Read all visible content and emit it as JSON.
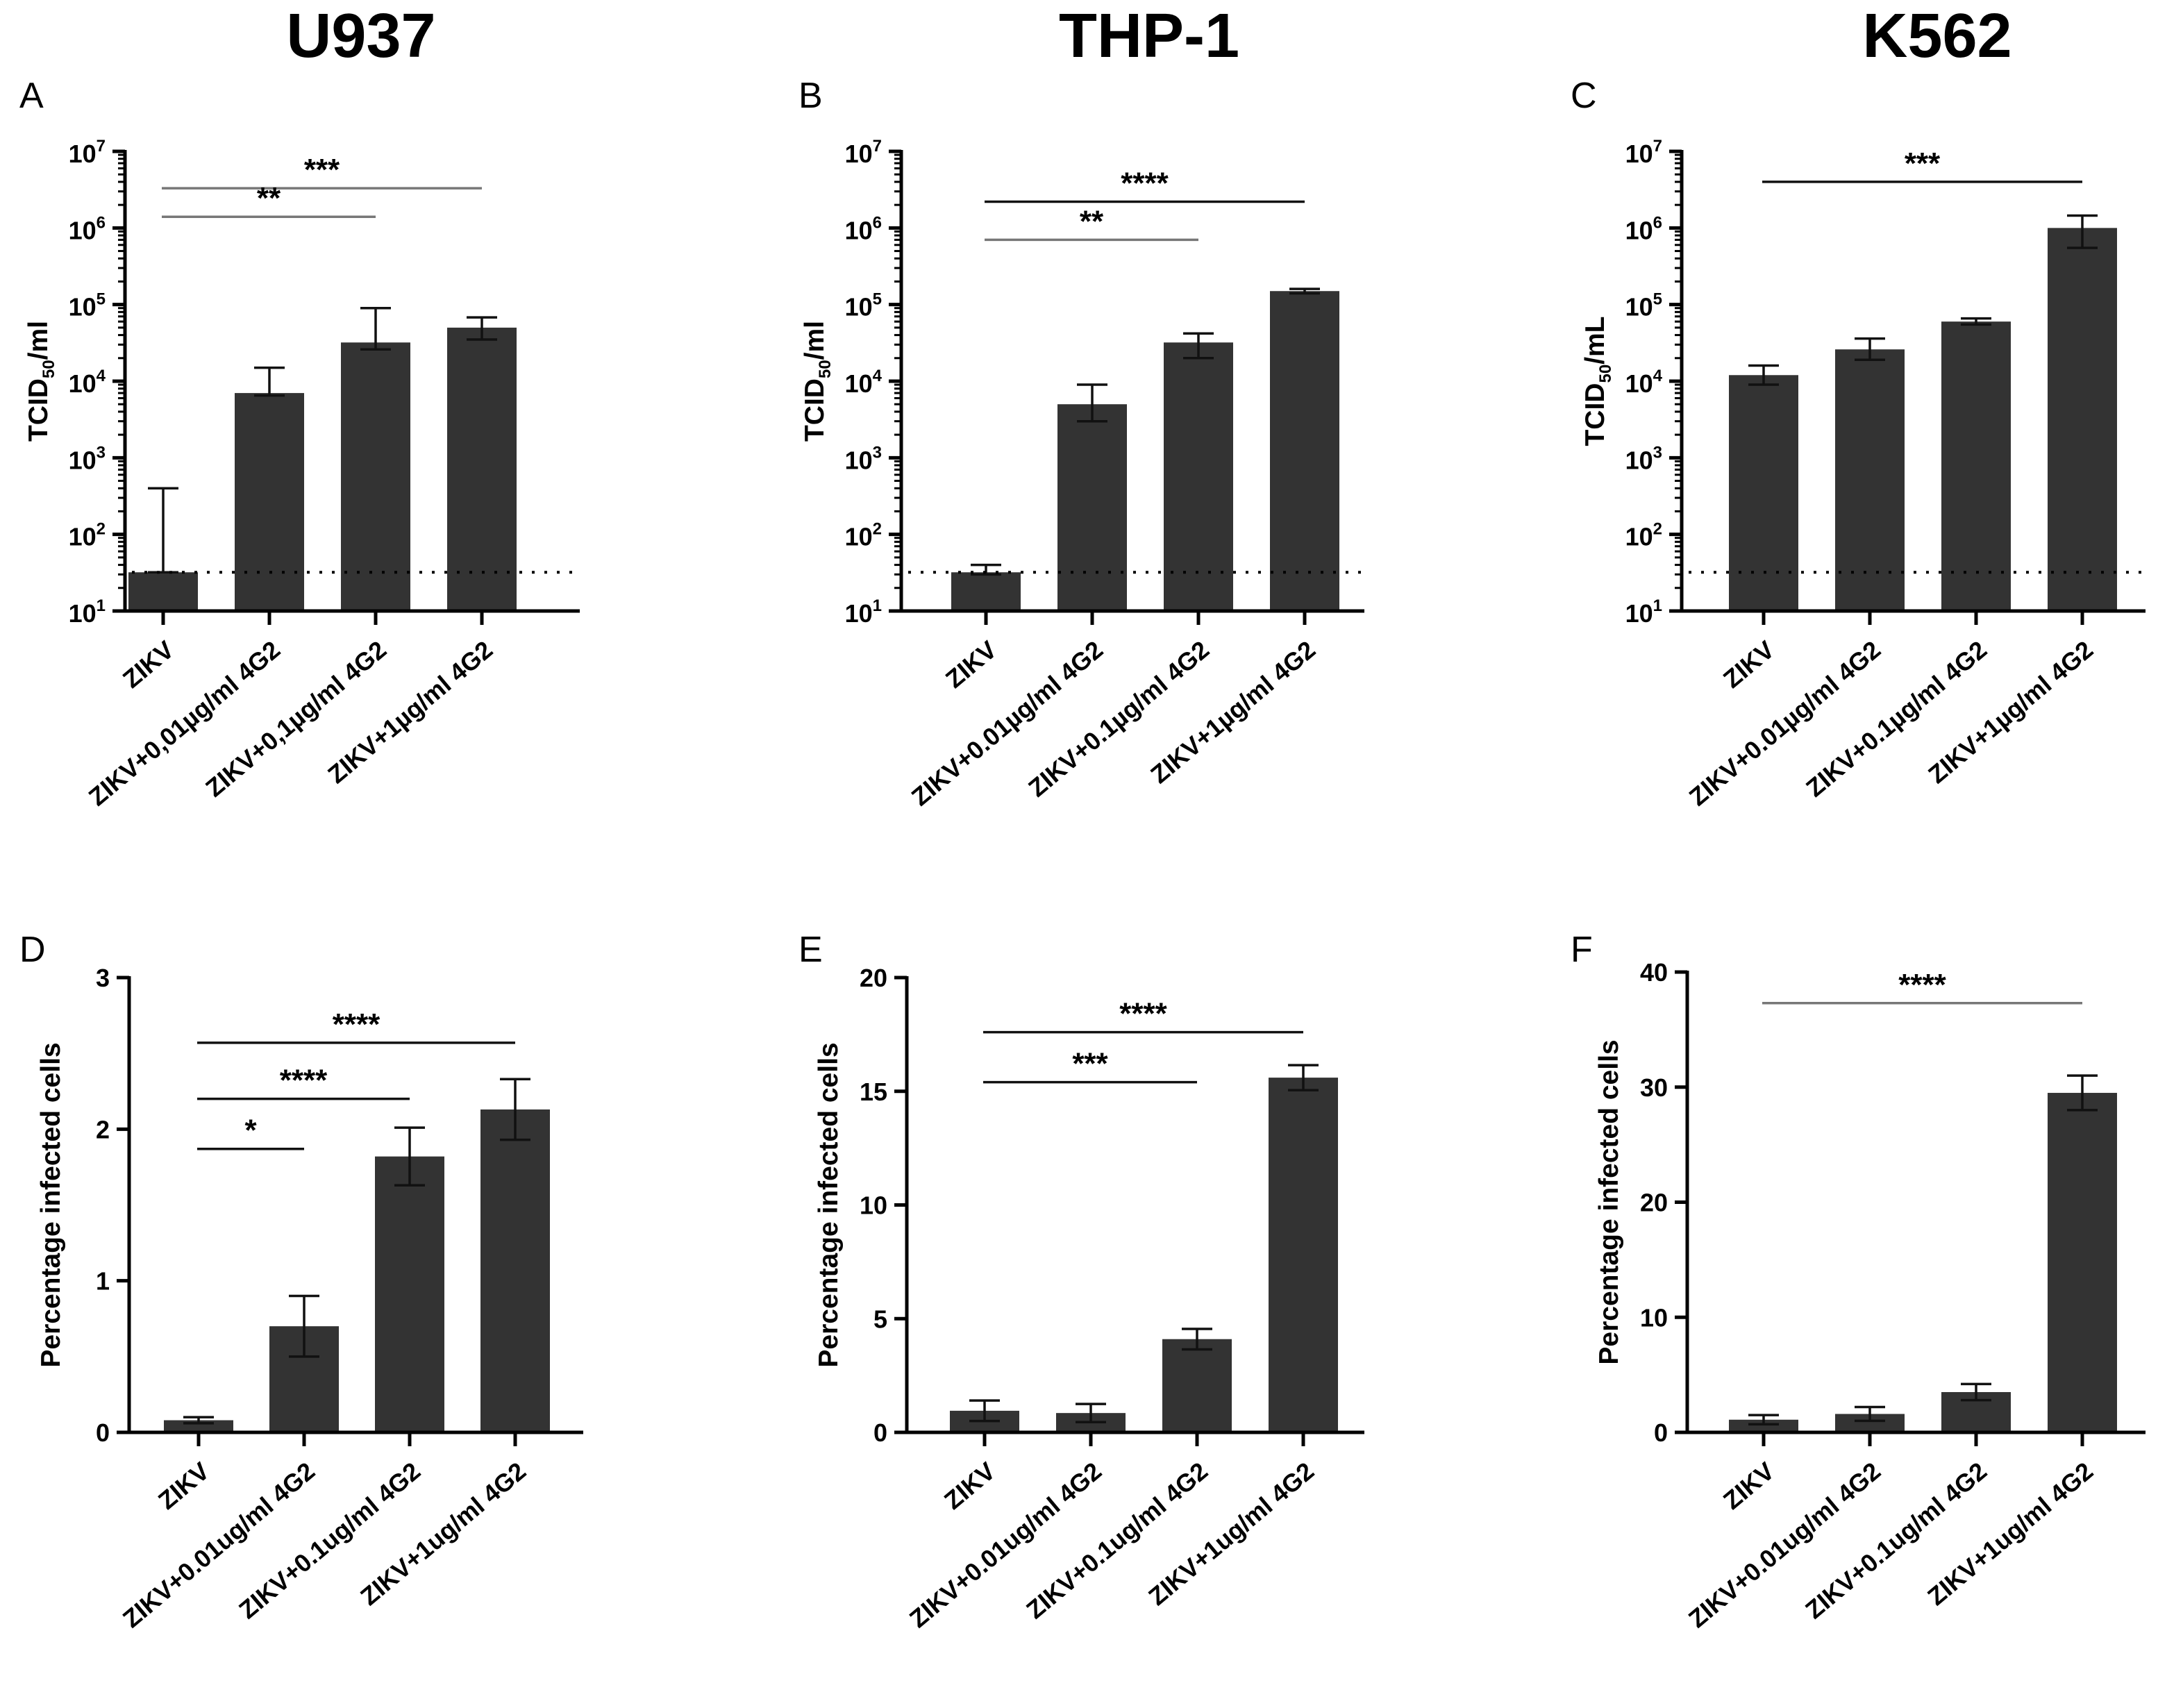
{
  "columns": [
    "U937",
    "THP-1",
    "K562"
  ],
  "chart_data": [
    {
      "panel": "A",
      "cell_line": "U937",
      "type": "bar",
      "scale": "log",
      "categories": [
        "ZIKV",
        "ZIKV+0,01µg/ml 4G2",
        "ZIKV+0,1µg/ml 4G2",
        "ZIKV+1µg/ml 4G2"
      ],
      "values": [
        32,
        7000,
        32000,
        50000
      ],
      "err_high": [
        400,
        15000,
        90000,
        68000
      ],
      "err_low": [
        32,
        6500,
        26000,
        35000
      ],
      "ylabel_main": "TCID",
      "ylabel_sub": "50",
      "ylabel_tail": "/ml",
      "ylim": [
        10,
        10000000
      ],
      "yticks": [
        {
          "base": "10",
          "exp": "1",
          "v": 10
        },
        {
          "base": "10",
          "exp": "2",
          "v": 100
        },
        {
          "base": "10",
          "exp": "3",
          "v": 1000
        },
        {
          "base": "10",
          "exp": "4",
          "v": 10000
        },
        {
          "base": "10",
          "exp": "5",
          "v": 100000
        },
        {
          "base": "10",
          "exp": "6",
          "v": 1000000
        },
        {
          "base": "10",
          "exp": "7",
          "v": 10000000
        }
      ],
      "detection_limit": 32,
      "significance": [
        {
          "from": 0,
          "to": 3,
          "label": "***",
          "y": 3300000,
          "color": "#777777"
        },
        {
          "from": 0,
          "to": 2,
          "label": "**",
          "y": 1400000,
          "color": "#777777"
        }
      ]
    },
    {
      "panel": "B",
      "cell_line": "THP-1",
      "type": "bar",
      "scale": "log",
      "categories": [
        "ZIKV",
        "ZIKV+0.01µg/ml 4G2",
        "ZIKV+0.1µg/ml 4G2",
        "ZIKV+1µg/ml 4G2"
      ],
      "values": [
        32,
        5000,
        32000,
        150000
      ],
      "err_high": [
        40,
        9000,
        42000,
        160000
      ],
      "err_low": [
        30,
        3000,
        20000,
        140000
      ],
      "ylabel_main": "TCID",
      "ylabel_sub": "50",
      "ylabel_tail": "/ml",
      "ylim": [
        10,
        10000000
      ],
      "yticks": [
        {
          "base": "10",
          "exp": "1",
          "v": 10
        },
        {
          "base": "10",
          "exp": "2",
          "v": 100
        },
        {
          "base": "10",
          "exp": "3",
          "v": 1000
        },
        {
          "base": "10",
          "exp": "4",
          "v": 10000
        },
        {
          "base": "10",
          "exp": "5",
          "v": 100000
        },
        {
          "base": "10",
          "exp": "6",
          "v": 1000000
        },
        {
          "base": "10",
          "exp": "7",
          "v": 10000000
        }
      ],
      "detection_limit": 32,
      "significance": [
        {
          "from": 0,
          "to": 3,
          "label": "****",
          "y": 2200000,
          "color": "#111111"
        },
        {
          "from": 0,
          "to": 2,
          "label": "**",
          "y": 700000,
          "color": "#777777"
        }
      ]
    },
    {
      "panel": "C",
      "cell_line": "K562",
      "type": "bar",
      "scale": "log",
      "categories": [
        "ZIKV",
        "ZIKV+0.01µg/ml 4G2",
        "ZIKV+0.1µg/ml 4G2",
        "ZIKV+1µg/ml 4G2"
      ],
      "values": [
        12000,
        26000,
        60000,
        1000000
      ],
      "err_high": [
        16000,
        36000,
        66000,
        1450000
      ],
      "err_low": [
        9000,
        19000,
        55000,
        550000
      ],
      "ylabel_main": "TCID",
      "ylabel_sub": "50",
      "ylabel_tail": "/mL",
      "ylim": [
        10,
        10000000
      ],
      "yticks": [
        {
          "base": "10",
          "exp": "1",
          "v": 10
        },
        {
          "base": "10",
          "exp": "2",
          "v": 100
        },
        {
          "base": "10",
          "exp": "3",
          "v": 1000
        },
        {
          "base": "10",
          "exp": "4",
          "v": 10000
        },
        {
          "base": "10",
          "exp": "5",
          "v": 100000
        },
        {
          "base": "10",
          "exp": "6",
          "v": 1000000
        },
        {
          "base": "10",
          "exp": "7",
          "v": 10000000
        }
      ],
      "detection_limit": 32,
      "significance": [
        {
          "from": 0,
          "to": 3,
          "label": "***",
          "y": 4000000,
          "color": "#111111"
        }
      ]
    },
    {
      "panel": "D",
      "cell_line": "U937",
      "type": "bar",
      "scale": "linear",
      "categories": [
        "ZIKV",
        "ZIKV+0.01ug/ml 4G2",
        "ZIKV+0.1ug/ml 4G2",
        "ZIKV+1ug/ml 4G2"
      ],
      "values": [
        0.08,
        0.7,
        1.82,
        2.13
      ],
      "err_high": [
        0.1,
        0.9,
        2.01,
        2.33
      ],
      "err_low": [
        0.06,
        0.5,
        1.63,
        1.93
      ],
      "ylabel": "Percentage infected cells",
      "ylim": [
        0,
        3
      ],
      "yticks": [
        {
          "label": "0",
          "v": 0
        },
        {
          "label": "1",
          "v": 1
        },
        {
          "label": "2",
          "v": 2
        },
        {
          "label": "3",
          "v": 3
        }
      ],
      "significance": [
        {
          "from": 0,
          "to": 3,
          "label": "****",
          "y": 2.57,
          "color": "#111111"
        },
        {
          "from": 0,
          "to": 2,
          "label": "****",
          "y": 2.2,
          "color": "#111111"
        },
        {
          "from": 0,
          "to": 1,
          "label": "*",
          "y": 1.87,
          "color": "#111111"
        }
      ]
    },
    {
      "panel": "E",
      "cell_line": "THP-1",
      "type": "bar",
      "scale": "linear",
      "categories": [
        "ZIKV",
        "ZIKV+0.01ug/ml 4G2",
        "ZIKV+0.1ug/ml 4G2",
        "ZIKV+1ug/ml 4G2"
      ],
      "values": [
        0.95,
        0.85,
        4.1,
        15.6
      ],
      "err_high": [
        1.4,
        1.25,
        4.55,
        16.15
      ],
      "err_low": [
        0.5,
        0.45,
        3.65,
        15.05
      ],
      "ylabel": "Percentage infected cells",
      "ylim": [
        0,
        20
      ],
      "yticks": [
        {
          "label": "0",
          "v": 0
        },
        {
          "label": "5",
          "v": 5
        },
        {
          "label": "10",
          "v": 10
        },
        {
          "label": "15",
          "v": 15
        },
        {
          "label": "20",
          "v": 20
        }
      ],
      "significance": [
        {
          "from": 0,
          "to": 3,
          "label": "****",
          "y": 17.6,
          "color": "#111111"
        },
        {
          "from": 0,
          "to": 2,
          "label": "***",
          "y": 15.4,
          "color": "#111111"
        }
      ]
    },
    {
      "panel": "F",
      "cell_line": "K562",
      "type": "bar",
      "scale": "linear",
      "categories": [
        "ZIKV",
        "ZIKV+0.01ug/ml 4G2",
        "ZIKV+0.1ug/ml 4G2",
        "ZIKV+1ug/ml 4G2"
      ],
      "values": [
        1.1,
        1.6,
        3.5,
        29.5
      ],
      "err_high": [
        1.5,
        2.2,
        4.2,
        31.0
      ],
      "err_low": [
        0.7,
        1.0,
        2.8,
        28.0
      ],
      "ylabel": "Percentage infected cells",
      "ylim": [
        0,
        40
      ],
      "yticks": [
        {
          "label": "0",
          "v": 0
        },
        {
          "label": "10",
          "v": 10
        },
        {
          "label": "20",
          "v": 20
        },
        {
          "label": "30",
          "v": 30
        },
        {
          "label": "40",
          "v": 40
        }
      ],
      "significance": [
        {
          "from": 0,
          "to": 3,
          "label": "****",
          "y": 37.3,
          "color": "#777777"
        }
      ]
    }
  ]
}
